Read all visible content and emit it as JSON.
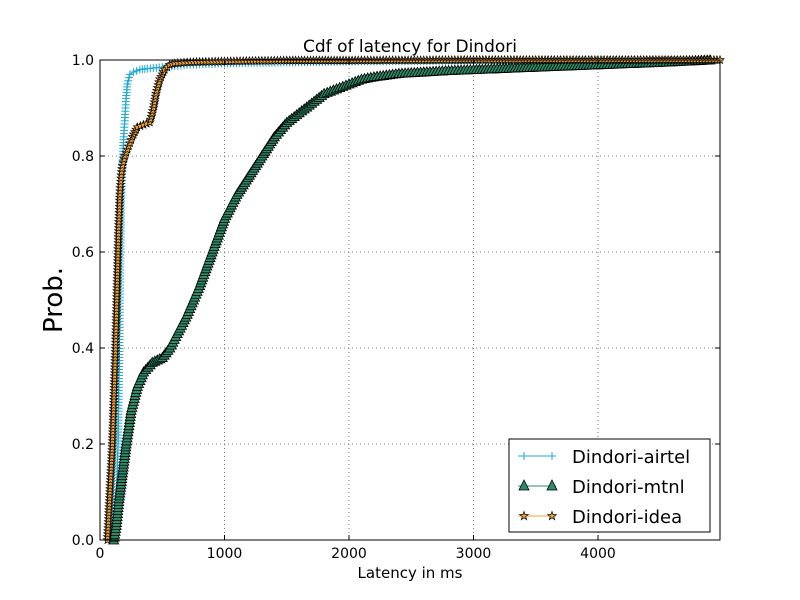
{
  "chart_data": {
    "type": "line",
    "title": "Cdf of latency for Dindori",
    "xlabel": "Latency in ms",
    "ylabel": "Prob.",
    "xlim": [
      0,
      4980
    ],
    "ylim": [
      0.0,
      1.0
    ],
    "xticks": [
      "0",
      "1000",
      "2000",
      "3000",
      "4000"
    ],
    "yticks": [
      "0.0",
      "0.2",
      "0.4",
      "0.6",
      "0.8",
      "1.0"
    ],
    "grid": true,
    "legend_position": "lower-right",
    "series": [
      {
        "name": "Dindori-airtel",
        "color": "#1da8d1",
        "marker": "plus",
        "x": [
          110,
          130,
          145,
          155,
          162,
          170,
          180,
          190,
          200,
          210,
          220,
          240,
          270,
          320,
          380,
          500,
          700,
          1000,
          1500,
          2000,
          3000,
          4980
        ],
        "y": [
          0.0,
          0.08,
          0.2,
          0.38,
          0.55,
          0.7,
          0.78,
          0.84,
          0.88,
          0.92,
          0.95,
          0.97,
          0.975,
          0.98,
          0.982,
          0.985,
          0.99,
          0.993,
          0.995,
          0.997,
          0.999,
          1.0
        ]
      },
      {
        "name": "Dindori-mtnl",
        "color": "#2e8b68",
        "marker": "triangle",
        "x": [
          110,
          130,
          150,
          180,
          210,
          250,
          300,
          350,
          420,
          500,
          560,
          620,
          700,
          800,
          900,
          1000,
          1100,
          1200,
          1300,
          1400,
          1500,
          1600,
          1700,
          1800,
          1900,
          2000,
          2100,
          2200,
          2400,
          2600,
          2800,
          3000,
          3500,
          4000,
          4500,
          4900
        ],
        "y": [
          0.0,
          0.03,
          0.08,
          0.14,
          0.2,
          0.27,
          0.32,
          0.35,
          0.37,
          0.38,
          0.4,
          0.43,
          0.47,
          0.53,
          0.6,
          0.67,
          0.72,
          0.76,
          0.8,
          0.84,
          0.87,
          0.89,
          0.91,
          0.93,
          0.94,
          0.95,
          0.96,
          0.965,
          0.972,
          0.975,
          0.978,
          0.98,
          0.985,
          0.99,
          0.995,
          1.0
        ]
      },
      {
        "name": "Dindori-idea",
        "color": "#f2a23a",
        "marker": "star",
        "x": [
          60,
          70,
          80,
          90,
          100,
          110,
          120,
          130,
          140,
          150,
          160,
          170,
          180,
          200,
          230,
          260,
          300,
          350,
          400,
          430,
          450,
          480,
          520,
          560,
          600,
          700,
          800,
          1000,
          1200,
          1500,
          2000,
          3000,
          4000,
          4980
        ],
        "y": [
          0.0,
          0.05,
          0.1,
          0.15,
          0.2,
          0.28,
          0.36,
          0.45,
          0.55,
          0.65,
          0.72,
          0.76,
          0.78,
          0.8,
          0.82,
          0.84,
          0.86,
          0.865,
          0.87,
          0.9,
          0.93,
          0.96,
          0.98,
          0.99,
          0.993,
          0.995,
          0.996,
          0.997,
          0.998,
          0.999,
          0.999,
          1.0,
          1.0,
          1.0
        ]
      }
    ]
  }
}
